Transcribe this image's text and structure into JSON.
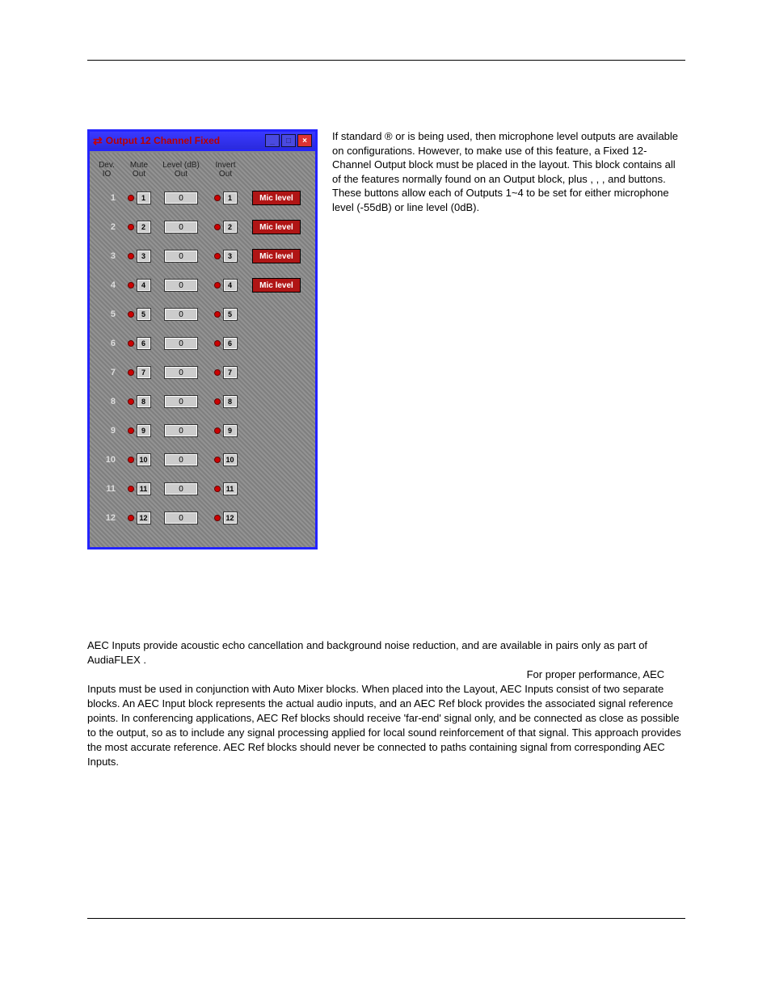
{
  "panel": {
    "title": "Output 12 Channel Fixed",
    "headers": {
      "dev": "Dev.",
      "io": "IO",
      "mute": "Mute",
      "mute2": "Out",
      "level": "Level (dB)",
      "level2": "Out",
      "invert": "Invert",
      "invert2": "Out"
    },
    "mic_label": "Mic level",
    "channels": [
      {
        "n": "1",
        "mute_num": "1",
        "level": "0",
        "inv_num": "1",
        "has_mic": true
      },
      {
        "n": "2",
        "mute_num": "2",
        "level": "0",
        "inv_num": "2",
        "has_mic": true
      },
      {
        "n": "3",
        "mute_num": "3",
        "level": "0",
        "inv_num": "3",
        "has_mic": true
      },
      {
        "n": "4",
        "mute_num": "4",
        "level": "0",
        "inv_num": "4",
        "has_mic": true
      },
      {
        "n": "5",
        "mute_num": "5",
        "level": "0",
        "inv_num": "5",
        "has_mic": false
      },
      {
        "n": "6",
        "mute_num": "6",
        "level": "0",
        "inv_num": "6",
        "has_mic": false
      },
      {
        "n": "7",
        "mute_num": "7",
        "level": "0",
        "inv_num": "7",
        "has_mic": false
      },
      {
        "n": "8",
        "mute_num": "8",
        "level": "0",
        "inv_num": "8",
        "has_mic": false
      },
      {
        "n": "9",
        "mute_num": "9",
        "level": "0",
        "inv_num": "9",
        "has_mic": false
      },
      {
        "n": "10",
        "mute_num": "10",
        "level": "0",
        "inv_num": "10",
        "has_mic": false
      },
      {
        "n": "11",
        "mute_num": "11",
        "level": "0",
        "inv_num": "11",
        "has_mic": false
      },
      {
        "n": "12",
        "mute_num": "12",
        "level": "0",
        "inv_num": "12",
        "has_mic": false
      }
    ],
    "colors": {
      "border": "#2424ff",
      "titlebar_bg_top": "#3a3aff",
      "titlebar_bg_bottom": "#2a2add",
      "title_text": "#b00000",
      "body_bg": "#8a8a8a",
      "dot_fill": "#c00000",
      "mic_bg": "#b01515",
      "mic_text": "#ffffff",
      "numbox_bg": "#cccccc"
    }
  },
  "para1": {
    "t1": "If standard ",
    "t2": "® or ",
    "link1": "              ",
    "t3": " is being used, then microphone level outputs are available on ",
    "t4": " configurations. However, to make use of this feature, a Fixed 12-Channel Output block must be placed in the layout. This block contains all of the features normally found on an Output block, plus ",
    "t5": ", ",
    "t6": ", ",
    "t7": ", and ",
    "t8": " buttons. These buttons allow each of Outputs 1~4 to be set for either microphone level (-55dB) or line level (0dB)."
  },
  "para2": {
    "s1": "AEC Inputs provide acoustic echo cancellation and background noise reduction, and are available in pairs only as part of AudiaFLEX ",
    "link1": "           ",
    "s1b": ".",
    "s2": " For proper performance, AEC Inputs must be used in conjunction with Auto Mixer blocks. When placed into the Layout, AEC Inputs consist of two separate blocks. An AEC Input block represents the actual audio inputs, and an AEC Ref block provides the associated signal reference points. In conferencing applications, AEC Ref blocks should receive 'far-end' signal only, and be connected as close as possible to the output, so as to include any signal processing applied for local sound reinforcement of that signal. This approach provides the most accurate reference. AEC Ref blocks should never be connected to paths containing signal from corresponding AEC Inputs."
  }
}
